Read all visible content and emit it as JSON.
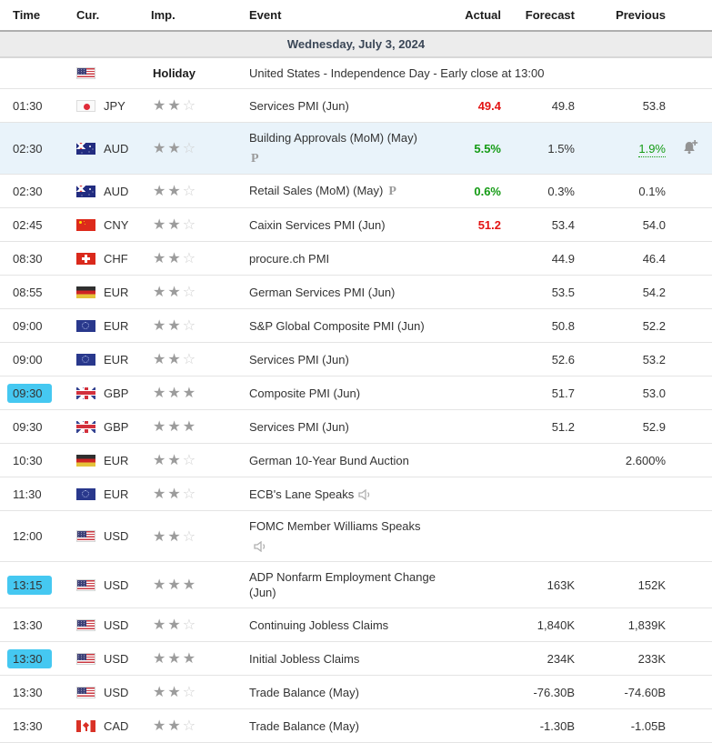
{
  "header": {
    "columns": [
      "Time",
      "Cur.",
      "Imp.",
      "Event",
      "Actual",
      "Forecast",
      "Previous"
    ]
  },
  "date_row": {
    "label": "Wednesday, July 3, 2024"
  },
  "colors": {
    "actual_red": "#e31414",
    "actual_green": "#149b14",
    "row_highlight": "#e9f3fa",
    "time_marker": "#45c8f1",
    "star_filled": "#9c9c9c",
    "star_empty": "#cfcfcf"
  },
  "icons": {
    "preliminary_label": "P",
    "bell": "bell-add-icon",
    "speaker": "speaker-icon"
  },
  "importance_max": 3,
  "rows": [
    {
      "type": "holiday",
      "flag": "us",
      "imp_label": "Holiday",
      "event": "United States - Independence Day - Early close at 13:00"
    },
    {
      "time": "01:30",
      "flag": "jp",
      "currency": "JPY",
      "importance": 2,
      "event": "Services PMI (Jun)",
      "actual": "49.4",
      "actual_color": "red",
      "forecast": "49.8",
      "previous": "53.8"
    },
    {
      "time": "02:30",
      "flag": "au",
      "currency": "AUD",
      "importance": 2,
      "event": "Building Approvals (MoM) (May)",
      "preliminary": "below",
      "actual": "5.5%",
      "actual_color": "green",
      "forecast": "1.5%",
      "previous": "1.9%",
      "previous_style": "green-dotted",
      "bell": true,
      "highlighted": true
    },
    {
      "time": "02:30",
      "flag": "au",
      "currency": "AUD",
      "importance": 2,
      "event": "Retail Sales (MoM) (May)",
      "preliminary": "inline",
      "actual": "0.6%",
      "actual_color": "green",
      "forecast": "0.3%",
      "previous": "0.1%"
    },
    {
      "time": "02:45",
      "flag": "cn",
      "currency": "CNY",
      "importance": 2,
      "event": "Caixin Services PMI (Jun)",
      "actual": "51.2",
      "actual_color": "red",
      "forecast": "53.4",
      "previous": "54.0"
    },
    {
      "time": "08:30",
      "flag": "ch",
      "currency": "CHF",
      "importance": 2,
      "event": "procure.ch PMI",
      "forecast": "44.9",
      "previous": "46.4"
    },
    {
      "time": "08:55",
      "flag": "de",
      "currency": "EUR",
      "importance": 2,
      "event": "German Services PMI (Jun)",
      "forecast": "53.5",
      "previous": "54.2"
    },
    {
      "time": "09:00",
      "flag": "eu",
      "currency": "EUR",
      "importance": 2,
      "event": "S&P Global Composite PMI (Jun)",
      "forecast": "50.8",
      "previous": "52.2"
    },
    {
      "time": "09:00",
      "flag": "eu",
      "currency": "EUR",
      "importance": 2,
      "event": "Services PMI (Jun)",
      "forecast": "52.6",
      "previous": "53.2"
    },
    {
      "time": "09:30",
      "time_marked": true,
      "flag": "gb",
      "currency": "GBP",
      "importance": 3,
      "event": "Composite PMI (Jun)",
      "forecast": "51.7",
      "previous": "53.0"
    },
    {
      "time": "09:30",
      "flag": "gb",
      "currency": "GBP",
      "importance": 3,
      "event": "Services PMI (Jun)",
      "forecast": "51.2",
      "previous": "52.9"
    },
    {
      "time": "10:30",
      "flag": "de",
      "currency": "EUR",
      "importance": 2,
      "event": "German 10-Year Bund Auction",
      "previous": "2.600%"
    },
    {
      "time": "11:30",
      "flag": "eu",
      "currency": "EUR",
      "importance": 2,
      "event": "ECB's Lane Speaks",
      "speaker": "inline"
    },
    {
      "time": "12:00",
      "flag": "us",
      "currency": "USD",
      "importance": 2,
      "event": "FOMC Member Williams Speaks",
      "speaker": "below"
    },
    {
      "time": "13:15",
      "time_marked": true,
      "flag": "us",
      "currency": "USD",
      "importance": 3,
      "event": "ADP Nonfarm Employment Change (Jun)",
      "forecast": "163K",
      "previous": "152K"
    },
    {
      "time": "13:30",
      "flag": "us",
      "currency": "USD",
      "importance": 2,
      "event": "Continuing Jobless Claims",
      "forecast": "1,840K",
      "previous": "1,839K"
    },
    {
      "time": "13:30",
      "time_marked": true,
      "flag": "us",
      "currency": "USD",
      "importance": 3,
      "event": "Initial Jobless Claims",
      "forecast": "234K",
      "previous": "233K"
    },
    {
      "time": "13:30",
      "flag": "us",
      "currency": "USD",
      "importance": 2,
      "event": "Trade Balance (May)",
      "forecast": "-76.30B",
      "previous": "-74.60B"
    },
    {
      "time": "13:30",
      "flag": "ca",
      "currency": "CAD",
      "importance": 2,
      "event": "Trade Balance (May)",
      "forecast": "-1.30B",
      "previous": "-1.05B"
    }
  ]
}
